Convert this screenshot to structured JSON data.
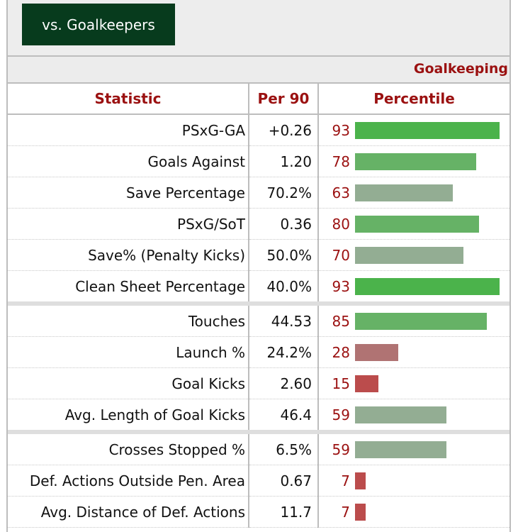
{
  "filter": {
    "label": "vs. Goalkeepers"
  },
  "section": {
    "title": "Goalkeeping"
  },
  "headers": {
    "statistic": "Statistic",
    "per90": "Per 90",
    "percentile": "Percentile"
  },
  "colors": {
    "accent_red": "#9b1111",
    "dark_green": "#073b1d",
    "bar_high": "#4bb34b",
    "bar_mid_high": "#66b266",
    "bar_mid": "#93ad93",
    "bar_low": "#b07373",
    "bar_lowest": "#bb4c4c"
  },
  "groups": [
    [
      {
        "stat": "PSxG-GA",
        "per90": "+0.26",
        "percentile": 93
      },
      {
        "stat": "Goals Against",
        "per90": "1.20",
        "percentile": 78
      },
      {
        "stat": "Save Percentage",
        "per90": "70.2%",
        "percentile": 63
      },
      {
        "stat": "PSxG/SoT",
        "per90": "0.36",
        "percentile": 80
      },
      {
        "stat": "Save% (Penalty Kicks)",
        "per90": "50.0%",
        "percentile": 70
      },
      {
        "stat": "Clean Sheet Percentage",
        "per90": "40.0%",
        "percentile": 93
      }
    ],
    [
      {
        "stat": "Touches",
        "per90": "44.53",
        "percentile": 85
      },
      {
        "stat": "Launch %",
        "per90": "24.2%",
        "percentile": 28
      },
      {
        "stat": "Goal Kicks",
        "per90": "2.60",
        "percentile": 15
      },
      {
        "stat": "Avg. Length of Goal Kicks",
        "per90": "46.4",
        "percentile": 59
      }
    ],
    [
      {
        "stat": "Crosses Stopped %",
        "per90": "6.5%",
        "percentile": 59
      },
      {
        "stat": "Def. Actions Outside Pen. Area",
        "per90": "0.67",
        "percentile": 7
      },
      {
        "stat": "Avg. Distance of Def. Actions",
        "per90": "11.7",
        "percentile": 7
      }
    ]
  ]
}
